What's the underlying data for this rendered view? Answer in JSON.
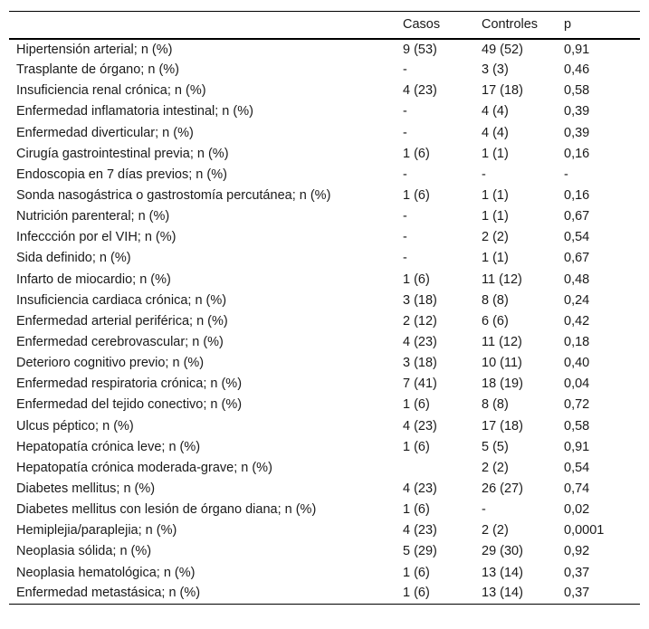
{
  "page": {
    "background_color": "#ffffff",
    "text_color": "#1a1a1a",
    "border_color": "#000000"
  },
  "table": {
    "header": {
      "label": "",
      "casos": "Casos",
      "controles": "Controles",
      "p": "p"
    },
    "rows": [
      {
        "label": "Hipertensión arterial; n (%)",
        "casos": "9 (53)",
        "controles": "49 (52)",
        "p": "0,91"
      },
      {
        "label": "Trasplante de órgano; n (%)",
        "casos": "-",
        "controles": "3 (3)",
        "p": "0,46"
      },
      {
        "label": "Insuficiencia renal crónica; n (%)",
        "casos": "4 (23)",
        "controles": "17 (18)",
        "p": "0,58"
      },
      {
        "label": "Enfermedad inflamatoria intestinal; n (%)",
        "casos": "-",
        "controles": "4 (4)",
        "p": "0,39"
      },
      {
        "label": "Enfermedad diverticular; n (%)",
        "casos": "-",
        "controles": "4 (4)",
        "p": "0,39"
      },
      {
        "label": "Cirugía gastrointestinal previa; n (%)",
        "casos": "1 (6)",
        "controles": "1 (1)",
        "p": "0,16"
      },
      {
        "label": "Endoscopia en 7 días previos; n (%)",
        "casos": "-",
        "controles": "-",
        "p": "-"
      },
      {
        "label": "Sonda nasogástrica o gastrostomía percutánea; n (%)",
        "casos": "1 (6)",
        "controles": "1 (1)",
        "p": "0,16"
      },
      {
        "label": "Nutrición parenteral; n (%)",
        "casos": "-",
        "controles": "1 (1)",
        "p": "0,67"
      },
      {
        "label": "Infeccción por el VIH; n (%)",
        "casos": "-",
        "controles": "2 (2)",
        "p": "0,54"
      },
      {
        "label": "Sida definido; n (%)",
        "casos": "-",
        "controles": "1 (1)",
        "p": "0,67"
      },
      {
        "label": "Infarto de miocardio; n (%)",
        "casos": "1 (6)",
        "controles": "11 (12)",
        "p": "0,48"
      },
      {
        "label": "Insuficiencia cardiaca crónica; n (%)",
        "casos": "3 (18)",
        "controles": "8 (8)",
        "p": "0,24"
      },
      {
        "label": "Enfermedad arterial periférica; n (%)",
        "casos": "2 (12)",
        "controles": "6 (6)",
        "p": "0,42"
      },
      {
        "label": "Enfermedad cerebrovascular; n (%)",
        "casos": "4 (23)",
        "controles": "11 (12)",
        "p": "0,18"
      },
      {
        "label": "Deterioro cognitivo previo; n (%)",
        "casos": "3 (18)",
        "controles": "10 (11)",
        "p": "0,40"
      },
      {
        "label": "Enfermedad respiratoria crónica; n (%)",
        "casos": "7 (41)",
        "controles": "18 (19)",
        "p": "0,04"
      },
      {
        "label": "Enfermedad del tejido conectivo; n (%)",
        "casos": "1 (6)",
        "controles": "8 (8)",
        "p": "0,72"
      },
      {
        "label": "Ulcus péptico; n (%)",
        "casos": "4 (23)",
        "controles": "17 (18)",
        "p": "0,58"
      },
      {
        "label": "Hepatopatía crónica leve; n (%)",
        "casos": "1 (6)",
        "controles": "5 (5)",
        "p": "0,91"
      },
      {
        "label": "Hepatopatía crónica moderada-grave; n (%)",
        "casos": "",
        "controles": "2 (2)",
        "p": "0,54"
      },
      {
        "label": "Diabetes mellitus; n (%)",
        "casos": "4 (23)",
        "controles": "26 (27)",
        "p": "0,74"
      },
      {
        "label": "Diabetes mellitus con lesión de órgano diana; n (%)",
        "casos": "1 (6)",
        "controles": "-",
        "p": "0,02"
      },
      {
        "label": "Hemiplejia/paraplejia; n (%)",
        "casos": "4 (23)",
        "controles": "2 (2)",
        "p": "0,0001"
      },
      {
        "label": "Neoplasia sólida; n (%)",
        "casos": "5 (29)",
        "controles": "29 (30)",
        "p": "0,92"
      },
      {
        "label": "Neoplasia hematológica; n (%)",
        "casos": "1 (6)",
        "controles": "13 (14)",
        "p": "0,37"
      },
      {
        "label": "Enfermedad metastásica; n (%)",
        "casos": "1 (6)",
        "controles": "13 (14)",
        "p": "0,37"
      }
    ]
  }
}
